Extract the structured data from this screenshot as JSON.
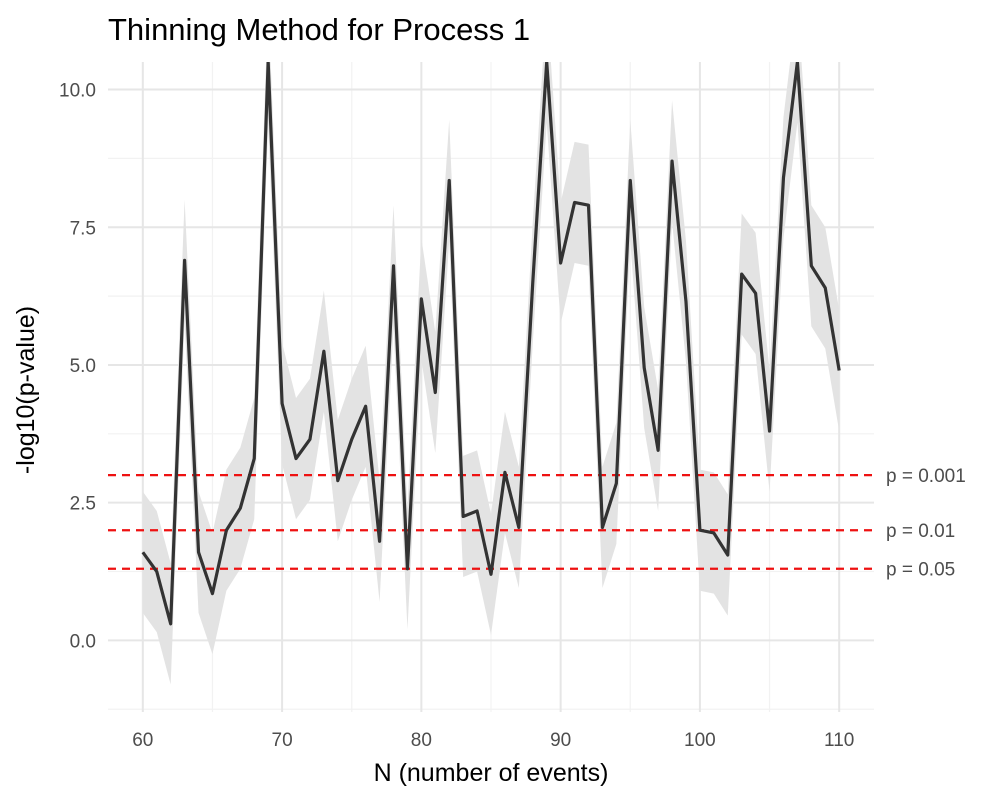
{
  "chart_data": {
    "type": "line",
    "title": "Thinning Method for Process 1",
    "xlabel": "N (number of events)",
    "ylabel": "-log10(p-value)",
    "xlim": [
      57.5,
      112.5
    ],
    "ylim": [
      -1.3,
      10.5
    ],
    "x_ticks": [
      60,
      70,
      80,
      90,
      100,
      110
    ],
    "x_tick_labels": [
      "60",
      "70",
      "80",
      "90",
      "100",
      "110"
    ],
    "y_ticks": [
      0,
      2.5,
      5,
      7.5,
      10
    ],
    "y_tick_labels": [
      "0.0",
      "2.5",
      "5.0",
      "7.5",
      "10.0"
    ],
    "grid": true,
    "line_color": "#333333",
    "band_color": "#e3e3e3",
    "series": [
      {
        "x": [
          60,
          61,
          62,
          63,
          64,
          65,
          66,
          67,
          68,
          69,
          70,
          71,
          72,
          73,
          74,
          75,
          76,
          77,
          78,
          79,
          80,
          81,
          82,
          83,
          84,
          85,
          86,
          87,
          88,
          89,
          90,
          91,
          92,
          93,
          94,
          95,
          96,
          97,
          98,
          99,
          100,
          101,
          102,
          103,
          104,
          105,
          106,
          107,
          108,
          109,
          110
        ],
        "y": [
          1.6,
          1.25,
          0.3,
          6.9,
          1.6,
          0.85,
          2.0,
          2.4,
          3.3,
          10.5,
          4.3,
          3.3,
          3.65,
          5.25,
          2.9,
          3.65,
          4.25,
          1.8,
          6.8,
          1.3,
          6.2,
          4.5,
          8.35,
          2.25,
          2.35,
          1.2,
          3.05,
          2.05,
          6.5,
          10.5,
          6.85,
          7.95,
          7.9,
          2.05,
          2.85,
          8.35,
          4.95,
          3.45,
          8.7,
          6.15,
          2.0,
          1.95,
          1.55,
          6.65,
          6.3,
          3.8,
          8.4,
          10.5,
          6.8,
          6.4,
          4.9
        ],
        "lower": [
          0.5,
          0.15,
          -0.8,
          5.8,
          0.5,
          -0.25,
          0.9,
          1.3,
          2.2,
          9.4,
          3.2,
          2.2,
          2.55,
          4.15,
          1.8,
          2.55,
          3.15,
          0.7,
          5.7,
          0.2,
          5.1,
          3.4,
          7.25,
          1.15,
          1.25,
          0.1,
          1.95,
          0.95,
          5.4,
          9.4,
          5.75,
          6.85,
          6.8,
          0.95,
          1.75,
          7.25,
          3.85,
          2.35,
          7.6,
          5.05,
          0.9,
          0.85,
          0.45,
          5.55,
          5.2,
          2.7,
          7.3,
          9.4,
          5.7,
          5.3,
          3.8
        ],
        "upper": [
          2.7,
          2.35,
          1.4,
          8.0,
          2.7,
          1.95,
          3.1,
          3.5,
          4.4,
          11.6,
          5.4,
          4.4,
          4.75,
          6.35,
          4.0,
          4.75,
          5.35,
          2.9,
          7.9,
          2.4,
          7.3,
          5.6,
          9.45,
          3.35,
          3.45,
          2.3,
          4.15,
          3.15,
          7.6,
          11.6,
          7.95,
          9.05,
          9.0,
          3.15,
          3.95,
          9.45,
          6.05,
          4.55,
          9.8,
          7.25,
          3.1,
          3.05,
          2.65,
          7.75,
          7.4,
          4.9,
          9.5,
          11.6,
          7.9,
          7.5,
          6.0
        ]
      }
    ],
    "reference_lines": [
      {
        "y": 3.0,
        "label": "p = 0.001",
        "color": "#ee1111"
      },
      {
        "y": 2.0,
        "label": "p = 0.01",
        "color": "#ee1111"
      },
      {
        "y": 1.30103,
        "label": "p = 0.05",
        "color": "#ee1111"
      }
    ]
  }
}
